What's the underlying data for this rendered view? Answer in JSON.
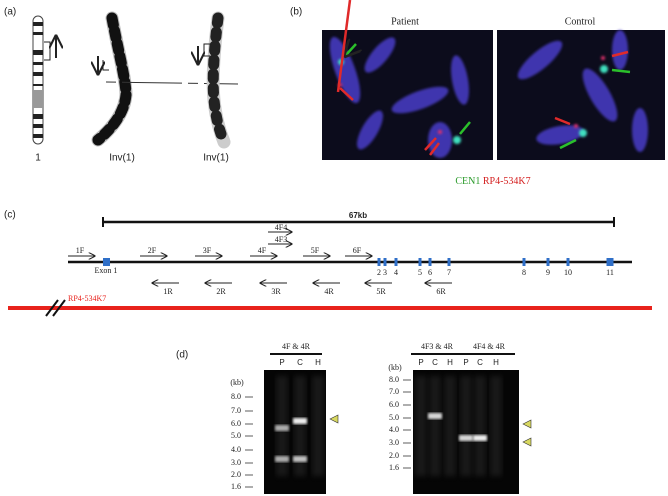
{
  "panel_a": {
    "label": "(a)",
    "ideogram_label": "1",
    "image_labels": [
      "Inv(1)",
      "Inv(1)"
    ]
  },
  "panel_b": {
    "label": "(b)",
    "columns": [
      "Patient",
      "Control"
    ],
    "legend": [
      "CEN1",
      "RP4-534K7"
    ]
  },
  "panel_c": {
    "label": "(c)",
    "span_label": "67kb",
    "forward_primers": [
      "1F",
      "2F",
      "3F",
      "4F",
      "5F",
      "6F"
    ],
    "extra_primers": [
      "4F4",
      "4F3"
    ],
    "reverse_primers": [
      "1R",
      "2R",
      "3R",
      "4R",
      "5R",
      "6R"
    ],
    "exon_1": "Exon 1",
    "exons": [
      "2",
      "3",
      "4",
      "5",
      "6",
      "7",
      "8",
      "9",
      "10",
      "11"
    ],
    "clone": "RP4-534K7"
  },
  "panel_d": {
    "label": "(d)",
    "gels": [
      {
        "titles": [
          "4F & 4R"
        ],
        "lanes": [
          "P",
          "C",
          "H"
        ],
        "unit": "(kb)",
        "ladder": [
          "8.0",
          "7.0",
          "6.0",
          "5.0",
          "4.0",
          "3.0",
          "2.0",
          "1.6"
        ]
      },
      {
        "titles": [
          "4F3 & 4R",
          "4F4 & 4R"
        ],
        "lanes": [
          "P",
          "C",
          "H",
          "P",
          "C",
          "H"
        ],
        "unit": "(kb)",
        "ladder": [
          "8.0",
          "7.0",
          "6.0",
          "5.0",
          "4.0",
          "3.0",
          "2.0",
          "1.6"
        ]
      }
    ]
  }
}
